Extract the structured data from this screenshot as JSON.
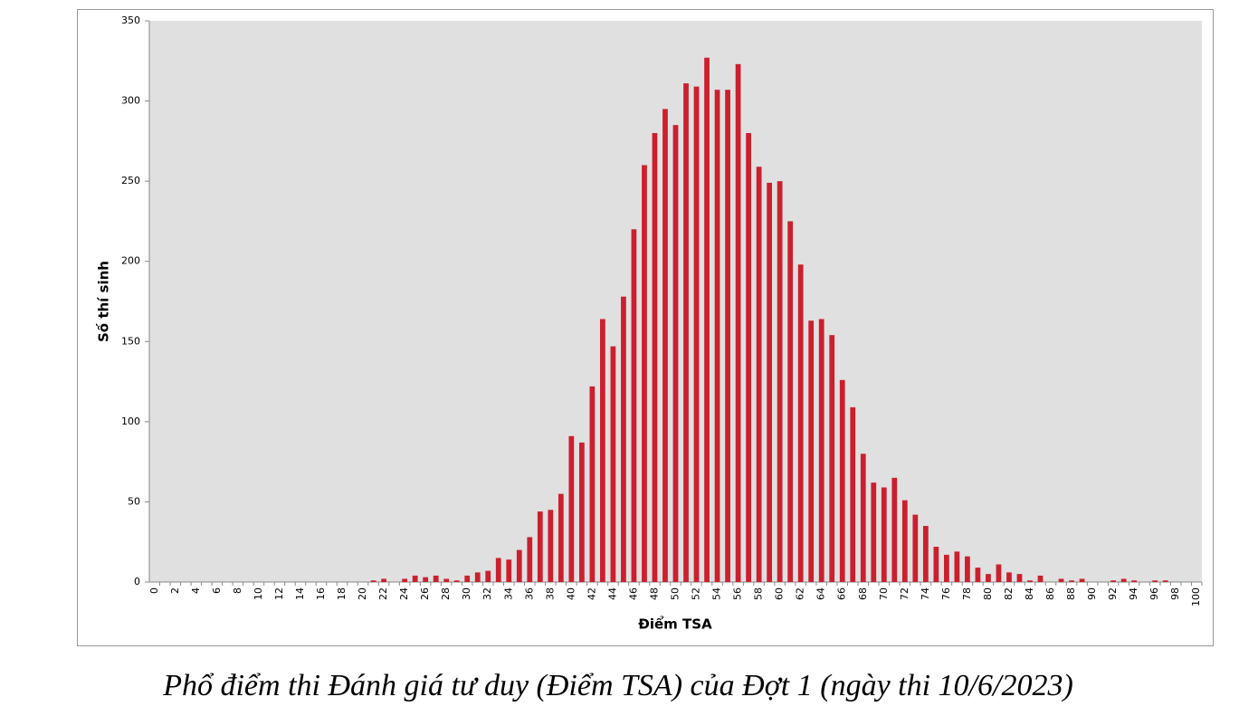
{
  "chart_data": {
    "type": "bar",
    "xlabel": "Điểm TSA",
    "ylabel": "Số thí sinh",
    "categories": [
      "0",
      null,
      "2",
      null,
      "4",
      null,
      "6",
      null,
      "8",
      null,
      "10",
      null,
      "12",
      null,
      "14",
      null,
      "16",
      null,
      "18",
      null,
      "20",
      null,
      "22",
      null,
      "24",
      null,
      "26",
      null,
      "28",
      null,
      "30",
      null,
      "32",
      null,
      "34",
      null,
      "36",
      null,
      "38",
      null,
      "40",
      null,
      "42",
      null,
      "44",
      null,
      "46",
      null,
      "48",
      null,
      "50",
      null,
      "52",
      null,
      "54",
      null,
      "56",
      null,
      "58",
      null,
      "60",
      null,
      "62",
      null,
      "64",
      null,
      "66",
      null,
      "68",
      null,
      "70",
      null,
      "72",
      null,
      "74",
      null,
      "76",
      null,
      "78",
      null,
      "80",
      null,
      "82",
      null,
      "84",
      null,
      "86",
      null,
      "88",
      null,
      "90",
      null,
      "92",
      null,
      "94",
      null,
      "96",
      null,
      "98",
      null,
      "100"
    ],
    "values": [
      0,
      0,
      0,
      0,
      0,
      0,
      0,
      0,
      0,
      0,
      0,
      0,
      0,
      0,
      0,
      0,
      0,
      0,
      0,
      0,
      0,
      1,
      2,
      0,
      2,
      4,
      3,
      4,
      2,
      1,
      4,
      6,
      7,
      15,
      14,
      20,
      28,
      44,
      45,
      55,
      91,
      87,
      122,
      164,
      147,
      178,
      220,
      260,
      280,
      295,
      285,
      311,
      309,
      327,
      307,
      307,
      323,
      280,
      259,
      249,
      250,
      225,
      198,
      163,
      164,
      154,
      126,
      109,
      80,
      62,
      59,
      65,
      51,
      42,
      35,
      22,
      17,
      19,
      16,
      9,
      5,
      11,
      6,
      5,
      1,
      4,
      0,
      2,
      1,
      2,
      0,
      0,
      1,
      2,
      1,
      0,
      1,
      1,
      0,
      0,
      0
    ],
    "color": "#cc1f2e",
    "ylim": [
      0,
      350
    ],
    "yticks": [
      0,
      50,
      100,
      150,
      200,
      250,
      300,
      350
    ],
    "grid": false
  },
  "caption": "Phổ điểm thi Đánh giá tư duy (Điểm TSA) của Đợt 1 (ngày thi 10/6/2023)"
}
